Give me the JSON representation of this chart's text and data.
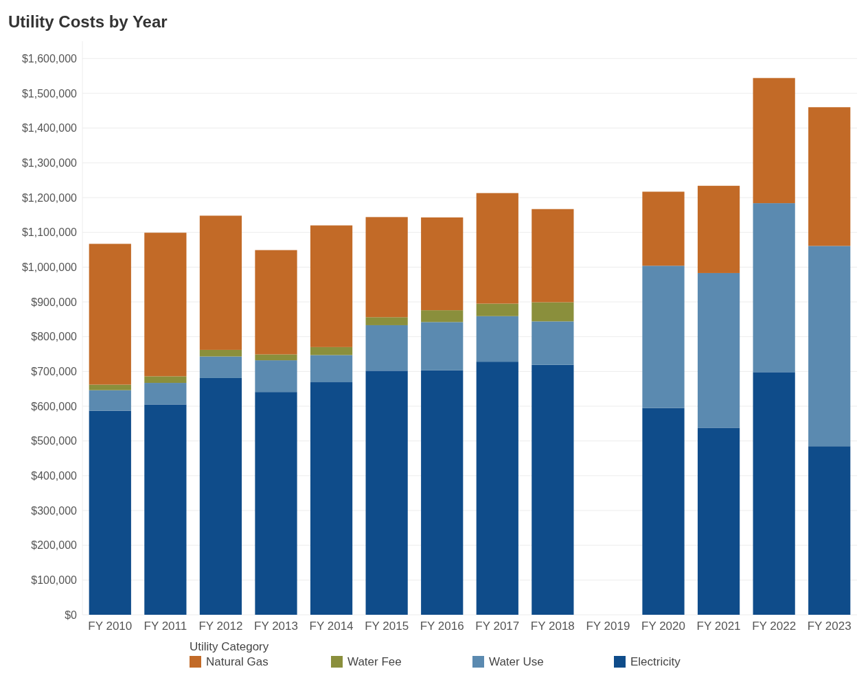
{
  "chart_data": {
    "type": "bar",
    "title": "Utility Costs by Year",
    "stacked": true,
    "legend": "bottom",
    "legend_title": "Utility Category",
    "grid": "y",
    "categories": [
      "FY 2010",
      "FY 2011",
      "FY 2012",
      "FY 2013",
      "FY 2014",
      "FY 2015",
      "FY 2016",
      "FY 2017",
      "FY 2018",
      "FY 2019",
      "FY 2020",
      "FY 2021",
      "FY 2022",
      "FY 2023"
    ],
    "ylim": [
      0,
      1650000
    ],
    "yticks": [
      {
        "value": 0,
        "label": "$0"
      },
      {
        "value": 100000,
        "label": "$100,000"
      },
      {
        "value": 200000,
        "label": "$200,000"
      },
      {
        "value": 300000,
        "label": "$300,000"
      },
      {
        "value": 400000,
        "label": "$400,000"
      },
      {
        "value": 500000,
        "label": "$500,000"
      },
      {
        "value": 600000,
        "label": "$600,000"
      },
      {
        "value": 700000,
        "label": "$700,000"
      },
      {
        "value": 800000,
        "label": "$800,000"
      },
      {
        "value": 900000,
        "label": "$900,000"
      },
      {
        "value": 1000000,
        "label": "$1,000,000"
      },
      {
        "value": 1100000,
        "label": "$1,100,000"
      },
      {
        "value": 1200000,
        "label": "$1,200,000"
      },
      {
        "value": 1300000,
        "label": "$1,300,000"
      },
      {
        "value": 1400000,
        "label": "$1,400,000"
      },
      {
        "value": 1500000,
        "label": "$1,500,000"
      },
      {
        "value": 1600000,
        "label": "$1,600,000"
      }
    ],
    "series": [
      {
        "name": "Electricity",
        "color": "#0f4c8a",
        "values": [
          587000,
          605000,
          681000,
          641000,
          669000,
          702000,
          703000,
          728000,
          719000,
          null,
          595000,
          538000,
          698000,
          485000
        ]
      },
      {
        "name": "Water Use",
        "color": "#5b8ab0",
        "values": [
          59000,
          62000,
          62000,
          91000,
          78000,
          131000,
          139000,
          131000,
          125000,
          null,
          409000,
          445000,
          486000,
          576000
        ]
      },
      {
        "name": "Water Fee",
        "color": "#8a8f3c",
        "values": [
          16000,
          19000,
          19000,
          17000,
          23000,
          23000,
          34000,
          36000,
          55000,
          null,
          null,
          null,
          null,
          null
        ]
      },
      {
        "name": "Natural Gas",
        "color": "#c26a27",
        "values": [
          405000,
          413000,
          386000,
          300000,
          350000,
          288000,
          267000,
          318000,
          268000,
          null,
          213000,
          251000,
          360000,
          399000
        ]
      }
    ]
  }
}
